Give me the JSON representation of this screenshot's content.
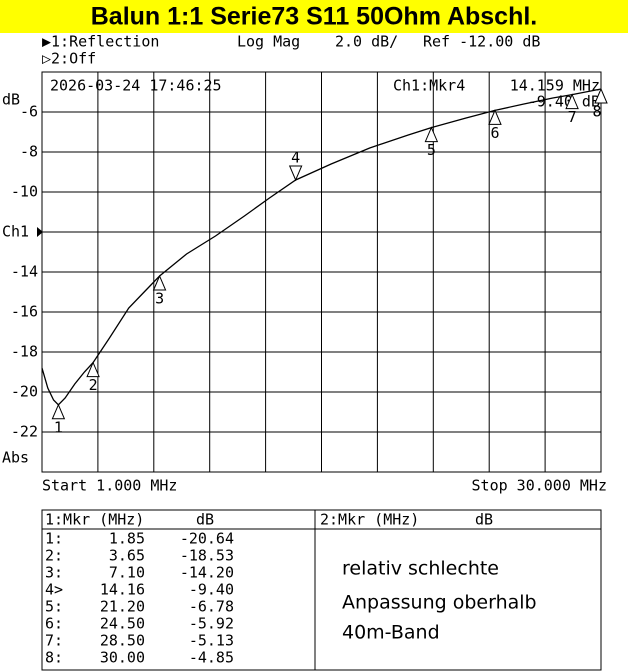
{
  "chart_data": {
    "type": "line",
    "title": "Balun 1:1  Serie73  S11 50Ohm Abschl.",
    "header": {
      "trace1": "▶1:Reflection",
      "format": "Log Mag",
      "scale": "2.0 dB/",
      "ref": "Ref -12.00 dB",
      "trace2": "▷2:Off",
      "datetime": "2026-03-24 17:46:25",
      "active_marker": "Ch1:Mkr4",
      "marker_freq": "14.159 MHz",
      "marker_value": "-9.40 dB"
    },
    "y_unit": "dB",
    "y_bottom_label": "Abs",
    "start_label": "Start 1.000 MHz",
    "stop_label": "Stop 30.000 MHz",
    "xlim": [
      1,
      30
    ],
    "ylim": [
      -24,
      -4
    ],
    "x_divisions": 10,
    "yticks": [
      -6,
      -8,
      -10,
      {
        "value": -12,
        "label": "Ch1"
      },
      -14,
      -16,
      -18,
      -20,
      -22
    ],
    "grid": true,
    "series": [
      {
        "name": "Reflection",
        "color": "#000000",
        "x": [
          1.0,
          1.3,
          1.6,
          1.85,
          2.2,
          2.7,
          3.2,
          3.65,
          4.5,
          5.5,
          6.3,
          7.1,
          8.5,
          10,
          11.5,
          12.8,
          14.16,
          16,
          18,
          20,
          21.2,
          23,
          24.5,
          26,
          27.5,
          28.5,
          30
        ],
        "values": [
          -18.8,
          -19.8,
          -20.4,
          -20.64,
          -20.3,
          -19.6,
          -19.0,
          -18.53,
          -17.3,
          -15.8,
          -15.0,
          -14.2,
          -13.1,
          -12.2,
          -11.2,
          -10.3,
          -9.4,
          -8.6,
          -7.8,
          -7.15,
          -6.78,
          -6.3,
          -5.92,
          -5.6,
          -5.3,
          -5.13,
          -4.85
        ]
      }
    ],
    "markers": {
      "names": [
        "1",
        "2",
        "3",
        "4",
        "5",
        "6",
        "7",
        "8"
      ],
      "active": 3,
      "x": [
        1.85,
        3.65,
        7.1,
        14.16,
        21.2,
        24.5,
        28.5,
        30.0
      ],
      "values": [
        -20.64,
        -18.53,
        -14.2,
        -9.4,
        -6.78,
        -5.92,
        -5.13,
        -4.85
      ]
    }
  },
  "marker_table": {
    "headers": [
      "1:Mkr (MHz)",
      "dB",
      "2:Mkr (MHz)",
      "dB"
    ],
    "rows": [
      [
        "1:",
        "1.85",
        "-20.64"
      ],
      [
        "2:",
        "3.65",
        "-18.53"
      ],
      [
        "3:",
        "7.10",
        "-14.20"
      ],
      [
        "4>",
        "14.16",
        "-9.40"
      ],
      [
        "5:",
        "21.20",
        "-6.78"
      ],
      [
        "6:",
        "24.50",
        "-5.92"
      ],
      [
        "7:",
        "28.50",
        "-5.13"
      ],
      [
        "8:",
        "30.00",
        "-4.85"
      ]
    ]
  },
  "annotation": [
    "relativ schlechte",
    "Anpassung oberhalb",
    "40m-Band"
  ]
}
